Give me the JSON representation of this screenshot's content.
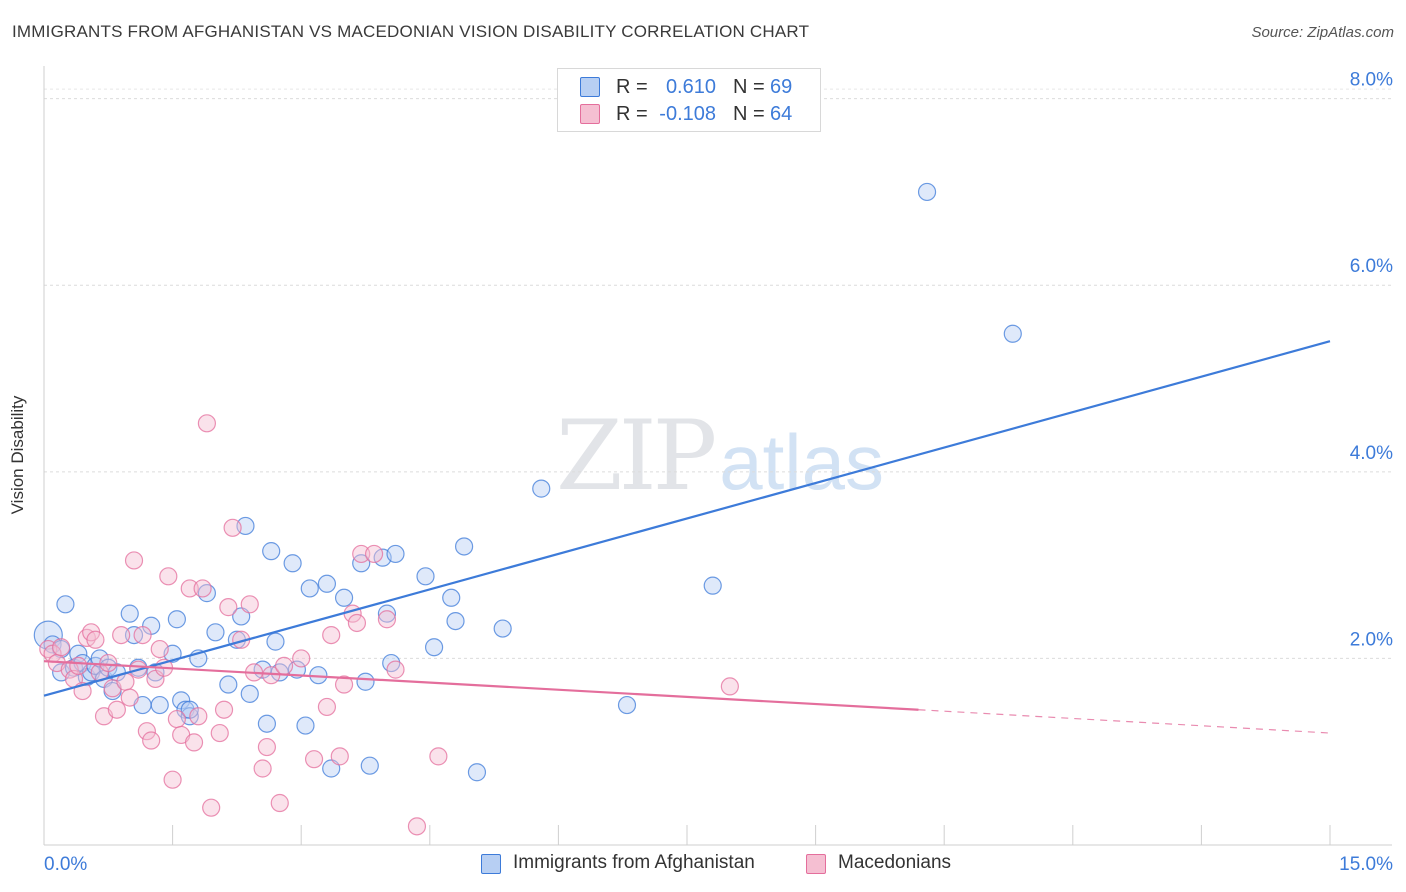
{
  "title": "IMMIGRANTS FROM AFGHANISTAN VS MACEDONIAN VISION DISABILITY CORRELATION CHART",
  "source": "Source: ZipAtlas.com",
  "watermark": {
    "zip": "ZIP",
    "atlas": "atlas"
  },
  "legend": {
    "rows": [
      {
        "r_label": "R =",
        "r_value": "0.610",
        "n_label": "N =",
        "n_value": "69",
        "color": "#3d7bd9"
      },
      {
        "r_label": "R =",
        "r_value": "-0.108",
        "n_label": "N =",
        "n_value": "64",
        "color": "#e46e9c"
      }
    ]
  },
  "chart_data": {
    "type": "scatter",
    "ylabel": "Vision Disability",
    "xlim": [
      0,
      15
    ],
    "ylim": [
      0,
      8.2
    ],
    "x_tick_labels": [
      {
        "value": 0,
        "label": "0.0%"
      },
      {
        "value": 15,
        "label": "15.0%"
      }
    ],
    "y_tick_labels": [
      {
        "value": 2,
        "label": "2.0%"
      },
      {
        "value": 4,
        "label": "4.0%"
      },
      {
        "value": 6,
        "label": "6.0%"
      },
      {
        "value": 8,
        "label": "8.0%"
      }
    ],
    "grid": true,
    "series": [
      {
        "name": "Immigrants from Afghanistan",
        "color": "#3d7bd9",
        "fill": "#b7cff3",
        "trend": {
          "x": [
            0,
            15
          ],
          "y": [
            1.6,
            5.4
          ]
        },
        "points": [
          [
            0.05,
            2.25
          ],
          [
            0.1,
            2.15
          ],
          [
            0.2,
            2.1
          ],
          [
            0.25,
            2.58
          ],
          [
            0.2,
            1.85
          ],
          [
            0.35,
            1.9
          ],
          [
            0.4,
            2.05
          ],
          [
            0.45,
            1.95
          ],
          [
            0.5,
            1.8
          ],
          [
            0.55,
            1.85
          ],
          [
            0.6,
            1.92
          ],
          [
            0.65,
            2.0
          ],
          [
            0.7,
            1.78
          ],
          [
            0.75,
            1.9
          ],
          [
            0.8,
            1.65
          ],
          [
            0.85,
            1.85
          ],
          [
            1.0,
            2.48
          ],
          [
            1.05,
            2.25
          ],
          [
            1.1,
            1.9
          ],
          [
            1.15,
            1.5
          ],
          [
            1.25,
            2.35
          ],
          [
            1.3,
            1.85
          ],
          [
            1.35,
            1.5
          ],
          [
            1.5,
            2.05
          ],
          [
            1.55,
            2.42
          ],
          [
            1.6,
            1.55
          ],
          [
            1.65,
            1.45
          ],
          [
            1.7,
            1.38
          ],
          [
            1.8,
            2.0
          ],
          [
            1.9,
            2.7
          ],
          [
            2.0,
            2.28
          ],
          [
            2.15,
            1.72
          ],
          [
            2.25,
            2.2
          ],
          [
            2.3,
            2.45
          ],
          [
            2.35,
            3.42
          ],
          [
            2.4,
            1.62
          ],
          [
            2.55,
            1.88
          ],
          [
            2.6,
            1.3
          ],
          [
            2.65,
            3.15
          ],
          [
            2.7,
            2.18
          ],
          [
            2.75,
            1.85
          ],
          [
            2.9,
            3.02
          ],
          [
            2.95,
            1.88
          ],
          [
            3.05,
            1.28
          ],
          [
            3.1,
            2.75
          ],
          [
            3.2,
            1.82
          ],
          [
            3.3,
            2.8
          ],
          [
            3.35,
            0.82
          ],
          [
            3.5,
            2.65
          ],
          [
            3.7,
            3.02
          ],
          [
            3.75,
            1.75
          ],
          [
            3.8,
            0.85
          ],
          [
            3.95,
            3.08
          ],
          [
            4.0,
            2.48
          ],
          [
            4.05,
            1.95
          ],
          [
            4.1,
            3.12
          ],
          [
            4.45,
            2.88
          ],
          [
            4.55,
            2.12
          ],
          [
            4.75,
            2.65
          ],
          [
            4.8,
            2.4
          ],
          [
            4.9,
            3.2
          ],
          [
            5.05,
            0.78
          ],
          [
            5.35,
            2.32
          ],
          [
            5.8,
            3.82
          ],
          [
            6.8,
            1.5
          ],
          [
            7.8,
            2.78
          ],
          [
            10.3,
            7.0
          ],
          [
            11.3,
            5.48
          ],
          [
            1.7,
            1.45
          ]
        ]
      },
      {
        "name": "Macedonians",
        "color": "#e46e9c",
        "fill": "#f5bfd2",
        "trend": {
          "x": [
            0,
            10.2
          ],
          "y": [
            1.97,
            1.45
          ]
        },
        "trend_dashed": {
          "x": [
            10.2,
            15
          ],
          "y": [
            1.45,
            1.2
          ]
        },
        "points": [
          [
            0.05,
            2.1
          ],
          [
            0.1,
            2.05
          ],
          [
            0.15,
            1.95
          ],
          [
            0.2,
            2.12
          ],
          [
            0.3,
            1.88
          ],
          [
            0.35,
            1.78
          ],
          [
            0.4,
            1.92
          ],
          [
            0.45,
            1.65
          ],
          [
            0.5,
            2.22
          ],
          [
            0.55,
            2.28
          ],
          [
            0.6,
            2.2
          ],
          [
            0.65,
            1.85
          ],
          [
            0.7,
            1.38
          ],
          [
            0.75,
            1.95
          ],
          [
            0.8,
            1.68
          ],
          [
            0.85,
            1.45
          ],
          [
            0.9,
            2.25
          ],
          [
            0.95,
            1.75
          ],
          [
            1.0,
            1.58
          ],
          [
            1.05,
            3.05
          ],
          [
            1.1,
            1.88
          ],
          [
            1.15,
            2.25
          ],
          [
            1.2,
            1.22
          ],
          [
            1.25,
            1.12
          ],
          [
            1.3,
            1.78
          ],
          [
            1.35,
            2.1
          ],
          [
            1.4,
            1.9
          ],
          [
            1.45,
            2.88
          ],
          [
            1.5,
            0.7
          ],
          [
            1.55,
            1.35
          ],
          [
            1.6,
            1.18
          ],
          [
            1.7,
            2.75
          ],
          [
            1.75,
            1.1
          ],
          [
            1.8,
            1.38
          ],
          [
            1.85,
            2.75
          ],
          [
            1.9,
            4.52
          ],
          [
            1.95,
            0.4
          ],
          [
            2.05,
            1.2
          ],
          [
            2.1,
            1.45
          ],
          [
            2.15,
            2.55
          ],
          [
            2.2,
            3.4
          ],
          [
            2.3,
            2.2
          ],
          [
            2.4,
            2.58
          ],
          [
            2.45,
            1.85
          ],
          [
            2.55,
            0.82
          ],
          [
            2.6,
            1.05
          ],
          [
            2.65,
            1.82
          ],
          [
            2.75,
            0.45
          ],
          [
            2.8,
            1.92
          ],
          [
            3.0,
            2.0
          ],
          [
            3.3,
            1.48
          ],
          [
            3.35,
            2.25
          ],
          [
            3.45,
            0.95
          ],
          [
            3.5,
            1.72
          ],
          [
            3.6,
            2.48
          ],
          [
            3.65,
            2.38
          ],
          [
            3.7,
            3.12
          ],
          [
            3.85,
            3.12
          ],
          [
            4.0,
            2.42
          ],
          [
            4.1,
            1.88
          ],
          [
            4.35,
            0.2
          ],
          [
            4.6,
            0.95
          ],
          [
            8.0,
            1.7
          ],
          [
            3.15,
            0.92
          ]
        ]
      }
    ]
  }
}
